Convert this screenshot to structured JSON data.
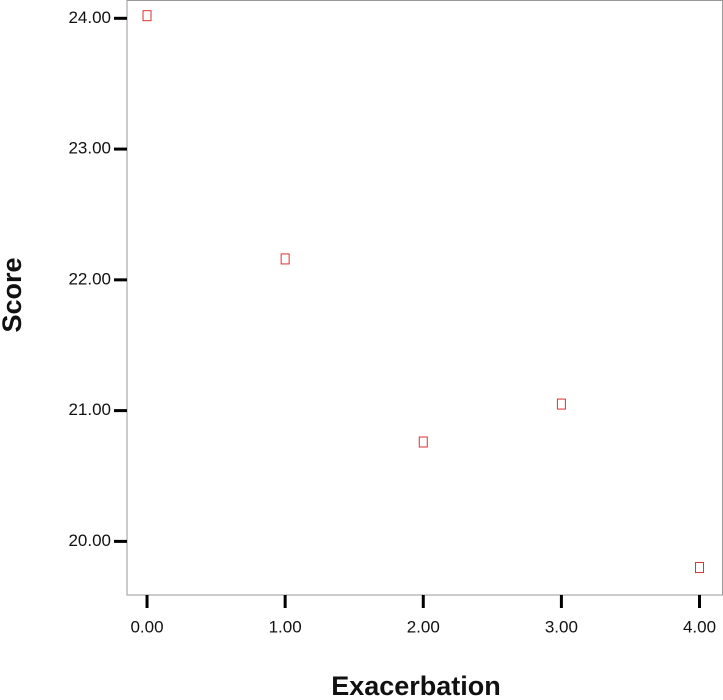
{
  "chart_data": {
    "type": "scatter",
    "x_label": "Exacerbation",
    "y_label": "Score",
    "x": [
      0,
      1,
      2,
      3,
      4
    ],
    "series": [
      {
        "color": "#e03030",
        "values": [
          24.02,
          22.16,
          20.76,
          21.05,
          19.8
        ]
      }
    ],
    "xlim": [
      -0.145,
      4.17
    ],
    "ylim": [
      19.59,
      24.14
    ],
    "xticks": [
      {
        "value": 0,
        "label": "0.00"
      },
      {
        "value": 1,
        "label": "1.00"
      },
      {
        "value": 2,
        "label": "2.00"
      },
      {
        "value": 3,
        "label": "3.00"
      },
      {
        "value": 4,
        "label": "4.00"
      }
    ],
    "yticks": [
      {
        "value": 20,
        "label": "20.00"
      },
      {
        "value": 21,
        "label": "21.00"
      },
      {
        "value": 22,
        "label": "22.00"
      },
      {
        "value": 23,
        "label": "23.00"
      },
      {
        "value": 24,
        "label": "24.00"
      }
    ],
    "grid": false
  }
}
